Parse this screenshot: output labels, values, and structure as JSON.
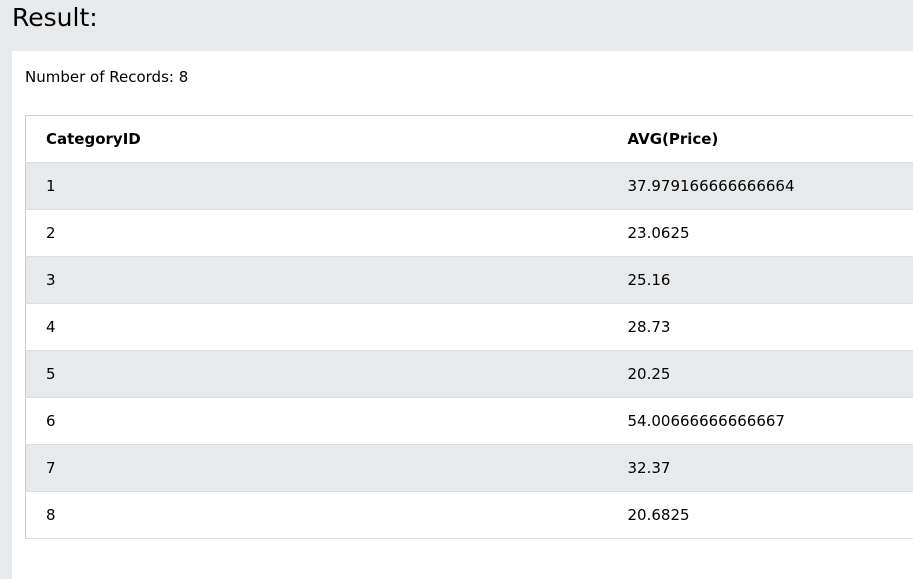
{
  "heading": "Result:",
  "record_count": {
    "label": "Number of Records: ",
    "value": "8"
  },
  "table": {
    "columns": [
      "CategoryID",
      "AVG(Price)"
    ],
    "rows": [
      [
        "1",
        "37.979166666666664"
      ],
      [
        "2",
        "23.0625"
      ],
      [
        "3",
        "25.16"
      ],
      [
        "4",
        "28.73"
      ],
      [
        "5",
        "20.25"
      ],
      [
        "6",
        "54.00666666666667"
      ],
      [
        "7",
        "32.37"
      ],
      [
        "8",
        "20.6825"
      ]
    ]
  },
  "colors": {
    "page_background": "#e7e9eb",
    "panel_background": "#ffffff",
    "striped_row": "#e7e9eb",
    "border": "#cccccc"
  }
}
